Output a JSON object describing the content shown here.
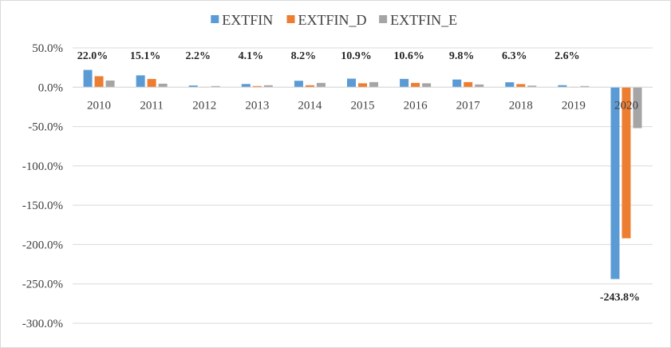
{
  "chart_data": {
    "type": "bar",
    "title": "",
    "xlabel": "",
    "ylabel": "",
    "categories": [
      "2010",
      "2011",
      "2012",
      "2013",
      "2014",
      "2015",
      "2016",
      "2017",
      "2018",
      "2019",
      "2020"
    ],
    "series": [
      {
        "name": "EXTFIN",
        "color": "#5B9BD5",
        "values": [
          22.0,
          15.1,
          2.2,
          4.1,
          8.2,
          10.9,
          10.6,
          9.8,
          6.3,
          2.6,
          -243.8
        ]
      },
      {
        "name": "EXTFIN_D",
        "color": "#ED7D31",
        "values": [
          14.0,
          10.5,
          0.5,
          1.5,
          2.5,
          5.0,
          5.5,
          6.5,
          4.0,
          0.5,
          -192.0
        ]
      },
      {
        "name": "EXTFIN_E",
        "color": "#A5A5A5",
        "values": [
          8.5,
          4.5,
          1.5,
          2.5,
          5.5,
          6.5,
          5.0,
          3.5,
          2.0,
          1.5,
          -52.0
        ]
      }
    ],
    "data_labels": [
      "22.0%",
      "15.1%",
      "2.2%",
      "4.1%",
      "8.2%",
      "10.9%",
      "10.6%",
      "9.8%",
      "6.3%",
      "2.6%",
      "-243.8%"
    ],
    "ylim": [
      -300,
      50
    ],
    "yticks": [
      50,
      0,
      -50,
      -100,
      -150,
      -200,
      -250,
      -300
    ],
    "ytick_labels": [
      "50.0%",
      "0.0%",
      "-50.0%",
      "-100.0%",
      "-150.0%",
      "-200.0%",
      "-250.0%",
      "-300.0%"
    ],
    "grid": true,
    "legend_position": "top-center",
    "gridline_color": "#D9D9D9",
    "axis_text_color": "#404040"
  }
}
